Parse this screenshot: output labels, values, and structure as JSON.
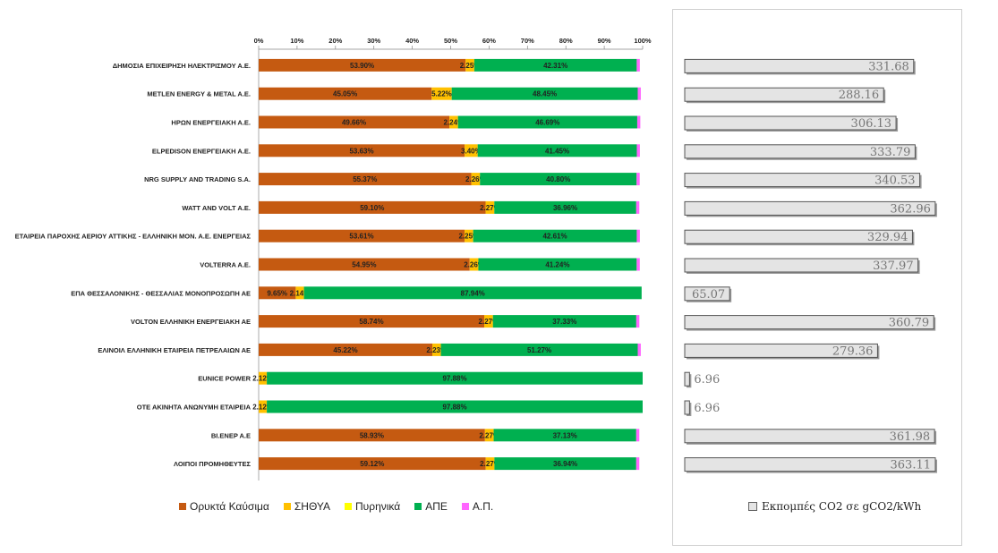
{
  "chart_data": [
    {
      "type": "bar",
      "stacked": true,
      "orientation": "horizontal",
      "xlim": [
        0,
        100
      ],
      "ticks": [
        "0%",
        "10%",
        "20%",
        "30%",
        "40%",
        "50%",
        "60%",
        "70%",
        "80%",
        "90%",
        "100%"
      ],
      "categories": [
        "ΔΗΜΟΣΙΑ ΕΠΙΧΕΙΡΗΣΗ ΗΛΕΚΤΡΙΣΜΟΥ Α.Ε.",
        "METLEN ENERGY & METAL A.E.",
        "ΗΡΩΝ ΕΝΕΡΓΕΙΑΚΗ Α.Ε.",
        "ELPEDISON ΕΝΕΡΓΕΙΑΚΗ Α.Ε.",
        "NRG SUPPLY AND TRADING S.A.",
        "WATT AND VOLT A.E.",
        "ΕΤΑΙΡΕΙΑ ΠΑΡΟΧΗΣ ΑΕΡΙΟΥ ΑΤΤΙΚΗΣ - ΕΛΛΗΝΙΚΗ ΜΟΝ. Α.Ε. ΕΝΕΡΓΕΙΑΣ",
        "VOLTERRA A.E.",
        "ΕΠΑ ΘΕΣΣΑΛΟΝΙΚΗΣ - ΘΕΣΣΑΛΙΑΣ ΜΟΝΟΠΡΟΣΩΠΗ ΑΕ",
        "VOLTON ΕΛΛΗΝΙΚΗ ΕΝΕΡΓΕΙΑΚΗ ΑΕ",
        "ΕΛΙΝΟΙΛ ΕΛΛΗΝΙΚΗ ΕΤΑΙΡΕΙΑ ΠΕΤΡΕΛΑΙΩΝ ΑΕ",
        "EUNICE POWER",
        "ΟΤΕ ΑΚΙΝΗΤΑ ΑΝΩΝΥΜΗ ΕΤΑΙΡΕΙΑ",
        "BI.ENEP A.E",
        "ΛΟΙΠΟΙ ΠΡΟΜΗΘΕΥΤΕΣ"
      ],
      "series": [
        {
          "name": "Ορυκτά Καύσιμα",
          "color": "#c55a11",
          "values": [
            53.9,
            45.05,
            49.66,
            53.63,
            55.37,
            59.1,
            53.61,
            54.95,
            9.65,
            58.74,
            45.22,
            0,
            0,
            58.93,
            59.12
          ],
          "labels": [
            "53.90%",
            "45.05%",
            "49.66%",
            "53.63%",
            "55.37%",
            "59.10%",
            "53.61%",
            "54.95%",
            "9.65%",
            "58.74%",
            "45.22%",
            "",
            "",
            "58.93%",
            "59.12%"
          ]
        },
        {
          "name": "ΣΗΘΥΑ",
          "color": "#ffc000",
          "values": [
            2.25,
            5.22,
            2.24,
            3.4,
            2.26,
            2.27,
            2.25,
            2.26,
            2.14,
            2.27,
            2.23,
            2.12,
            2.12,
            2.27,
            2.27
          ],
          "labels": [
            "2.25%",
            "5.22%",
            "2.24%",
            "3.40%",
            "2.26%",
            "2.27%",
            "2.25%",
            "2.26%",
            "2.14%",
            "2.27%",
            "2.23%",
            "2.12%",
            "2.12%",
            "2.27%",
            "2.27%"
          ]
        },
        {
          "name": "Πυρηνικά",
          "color": "#ffff00",
          "values": [
            0,
            0,
            0,
            0,
            0,
            0,
            0,
            0,
            0,
            0,
            0,
            0,
            0,
            0,
            0
          ],
          "labels": [
            "",
            "",
            "",
            "",
            "",
            "",
            "",
            "",
            "",
            "",
            "",
            "",
            "",
            "",
            ""
          ]
        },
        {
          "name": "ΑΠΕ",
          "color": "#00b050",
          "values": [
            42.31,
            48.45,
            46.69,
            41.45,
            40.8,
            36.96,
            42.61,
            41.24,
            87.94,
            37.33,
            51.27,
            97.88,
            97.88,
            37.13,
            36.94
          ],
          "labels": [
            "42.31%",
            "48.45%",
            "46.69%",
            "41.45%",
            "40.80%",
            "36.96%",
            "42.61%",
            "41.24%",
            "87.94%",
            "37.33%",
            "51.27%",
            "97.88%",
            "97.88%",
            "37.13%",
            "36.94%"
          ]
        },
        {
          "name": "Α.Π.",
          "color": "#ff66ff",
          "values": [
            0.8,
            0.8,
            0.8,
            0.8,
            0.8,
            0.8,
            0.8,
            0.8,
            0,
            0.8,
            0.8,
            0,
            0,
            0.8,
            0.8
          ],
          "labels": [
            "",
            "",
            "",
            "",
            "",
            "",
            "",
            "",
            "",
            "",
            "",
            "",
            "",
            "",
            ""
          ]
        }
      ],
      "legend_position": "bottom"
    },
    {
      "type": "bar",
      "orientation": "horizontal",
      "series": [
        {
          "name": "Εκπομπές CO2 σε gCO2/kWh",
          "color": "#e4e4e4",
          "values": [
            331.68,
            288.16,
            306.13,
            333.79,
            340.53,
            362.96,
            329.94,
            337.97,
            65.07,
            360.79,
            279.36,
            6.96,
            6.96,
            361.98,
            363.11
          ],
          "labels": [
            "331.68",
            "288.16",
            "306.13",
            "333.79",
            "340.53",
            "362.96",
            "329.94",
            "337.97",
            "65.07",
            "360.79",
            "279.36",
            "6.96",
            "6.96",
            "361.98",
            "363.11"
          ]
        }
      ],
      "xlim": [
        0,
        363.11
      ],
      "legend_position": "bottom"
    }
  ]
}
